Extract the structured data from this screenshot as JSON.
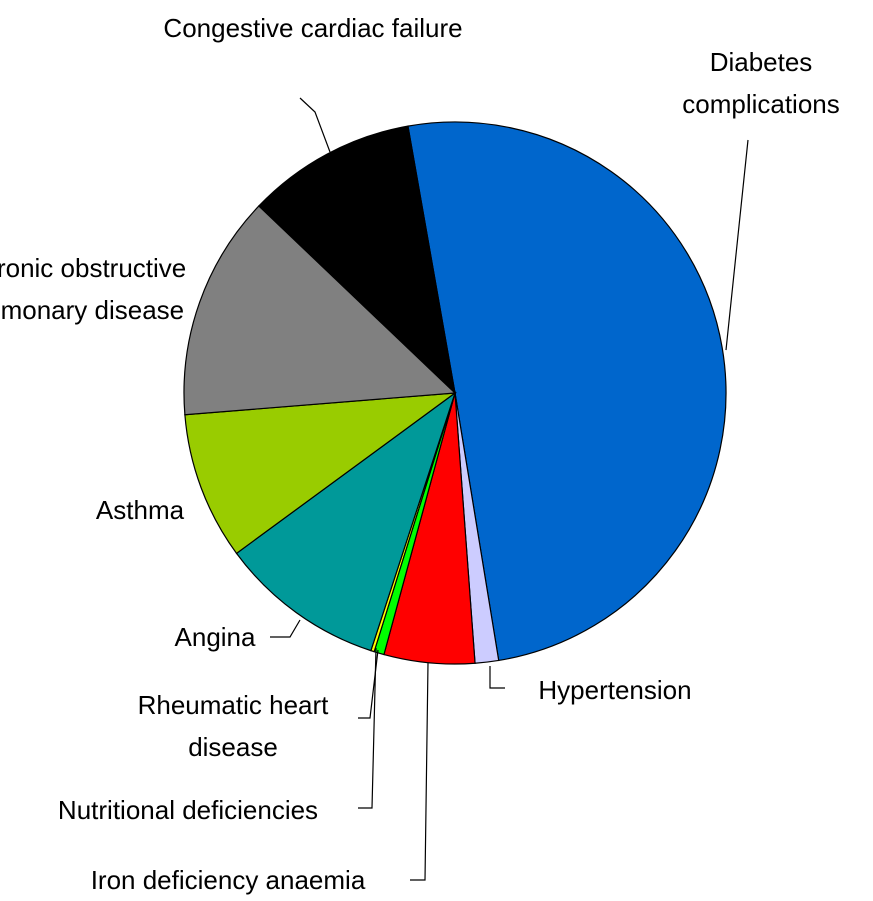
{
  "chart_data": {
    "type": "pie",
    "categories": [
      "Diabetes complications",
      "Hypertension",
      "Iron deficiency anaemia",
      "Nutritional deficiencies",
      "Rheumatic heart disease",
      "Angina",
      "Asthma",
      "Chronic obstructive pulmonary disease",
      "Congestive cardiac failure"
    ],
    "values": [
      50.2,
      1.4,
      5.4,
      0.6,
      0.2,
      9.9,
      8.8,
      13.4,
      10.1
    ],
    "colors": [
      "#0066cc",
      "#ccccff",
      "#ff0000",
      "#00ff00",
      "#ffff00",
      "#009999",
      "#99cc00",
      "#808080",
      "#000000"
    ]
  }
}
